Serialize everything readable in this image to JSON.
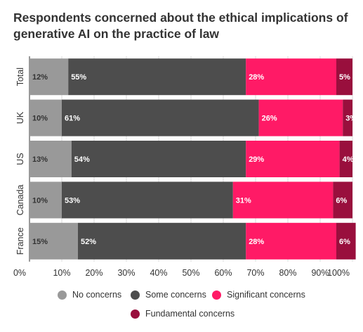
{
  "colors": {
    "no_concerns": "#999999",
    "some_concerns": "#4d4d4d",
    "significant_concerns": "#ff1a66",
    "fundamental_concerns": "#990f3d"
  },
  "chart_data": {
    "type": "bar",
    "orientation": "horizontal",
    "stacked": "percent",
    "title": "Respondents concerned about the ethical implications of generative AI on the practice of law",
    "categories": [
      "Total",
      "UK",
      "US",
      "Canada",
      "France"
    ],
    "series": [
      {
        "name": "No concerns",
        "values": [
          12,
          10,
          13,
          10,
          15
        ],
        "labels": [
          "12%",
          "10%",
          "13%",
          "10%",
          "15%"
        ]
      },
      {
        "name": "Some concerns",
        "values": [
          55,
          61,
          54,
          53,
          52
        ],
        "labels": [
          "55%",
          "61%",
          "54%",
          "53%",
          "52%"
        ]
      },
      {
        "name": "Significant concerns",
        "values": [
          28,
          26,
          29,
          31,
          28
        ],
        "labels": [
          "28%",
          "26%",
          "29%",
          "31%",
          "28%"
        ]
      },
      {
        "name": "Fundamental concerns",
        "values": [
          5,
          3,
          4,
          6,
          6
        ],
        "labels": [
          "5%",
          "3%",
          "4%",
          "6%",
          "6%"
        ]
      }
    ],
    "xlim": [
      0,
      100
    ],
    "x_ticks": [
      "0%",
      "10%",
      "20%",
      "30%",
      "40%",
      "50%",
      "60%",
      "70%",
      "80%",
      "90%",
      "100%"
    ],
    "grid": true,
    "legend_position": "bottom"
  }
}
